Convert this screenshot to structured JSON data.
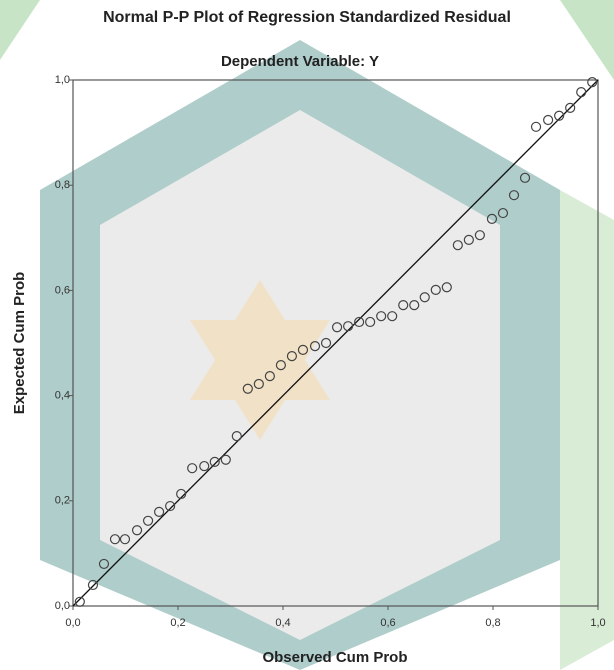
{
  "chart_data": {
    "type": "scatter",
    "title": "Normal P-P Plot of Regression Standardized Residual",
    "subtitle": "Dependent Variable: Y",
    "x_label": "Observed Cum Prob",
    "y_label": "Expected Cum Prob",
    "xlim": [
      0,
      1
    ],
    "ylim": [
      0,
      1
    ],
    "xticks": [
      {
        "value": 0,
        "label": "0,0"
      },
      {
        "value": 0.2,
        "label": "0,2"
      },
      {
        "value": 0.4,
        "label": "0,4"
      },
      {
        "value": 0.6,
        "label": "0,6"
      },
      {
        "value": 0.8,
        "label": "0,8"
      },
      {
        "value": 1,
        "label": "1,0"
      }
    ],
    "yticks": [
      {
        "value": 0,
        "label": "0,0"
      },
      {
        "value": 0.2,
        "label": "0,2"
      },
      {
        "value": 0.4,
        "label": "0,4"
      },
      {
        "value": 0.6,
        "label": "0,6"
      },
      {
        "value": 0.8,
        "label": "0,8"
      },
      {
        "value": 1,
        "label": "1,0"
      }
    ],
    "color": "#444444",
    "x": [
      0.013,
      0.038,
      0.059,
      0.08,
      0.099,
      0.122,
      0.143,
      0.164,
      0.185,
      0.206,
      0.227,
      0.25,
      0.27,
      0.291,
      0.312,
      0.333,
      0.354,
      0.375,
      0.396,
      0.417,
      0.438,
      0.461,
      0.482,
      0.503,
      0.524,
      0.545,
      0.566,
      0.587,
      0.608,
      0.629,
      0.65,
      0.67,
      0.691,
      0.712,
      0.733,
      0.754,
      0.775,
      0.798,
      0.819,
      0.84,
      0.861,
      0.882,
      0.905,
      0.926,
      0.947,
      0.968,
      0.989
    ],
    "values": [
      0.008,
      0.04,
      0.08,
      0.127,
      0.127,
      0.144,
      0.162,
      0.179,
      0.19,
      0.213,
      0.262,
      0.266,
      0.274,
      0.278,
      0.323,
      0.413,
      0.422,
      0.437,
      0.458,
      0.475,
      0.487,
      0.494,
      0.5,
      0.53,
      0.532,
      0.54,
      0.54,
      0.551,
      0.551,
      0.572,
      0.572,
      0.587,
      0.601,
      0.606,
      0.686,
      0.696,
      0.705,
      0.736,
      0.747,
      0.781,
      0.814,
      0.911,
      0.924,
      0.932,
      0.947,
      0.977,
      0.996
    ]
  }
}
